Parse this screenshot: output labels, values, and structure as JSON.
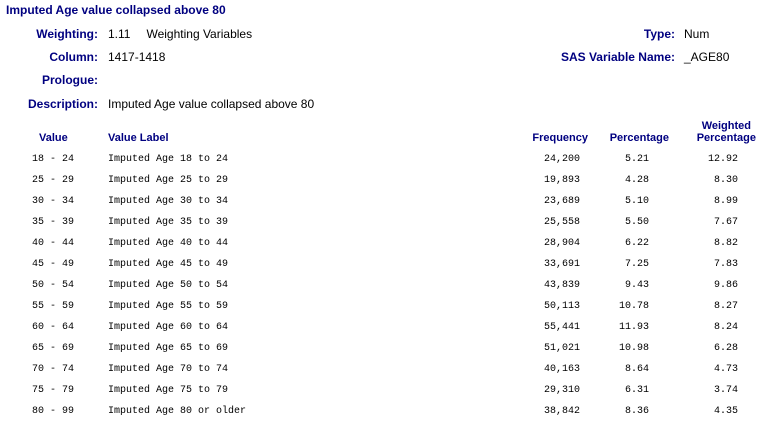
{
  "title": "Imputed Age value collapsed above 80",
  "meta": {
    "weighting_label": "Weighting:",
    "weighting_number": "1.11",
    "weighting_text": "Weighting Variables",
    "type_label": "Type:",
    "type_value": "Num",
    "column_label": "Column:",
    "column_value": "1417-1418",
    "sas_label": "SAS Variable Name:",
    "sas_value": "_AGE80",
    "prologue_label": "Prologue:",
    "description_label": "Description:",
    "description_value": "Imputed Age value collapsed above 80"
  },
  "table": {
    "headers": {
      "value": "Value",
      "value_label": "Value Label",
      "frequency": "Frequency",
      "percentage": "Percentage",
      "weighted_line1": "Weighted",
      "weighted_line2": "Percentage"
    },
    "rows": [
      {
        "value": "18 - 24",
        "label": "Imputed Age 18 to 24",
        "frequency": "24,200",
        "percentage": "5.21",
        "weighted": "12.92"
      },
      {
        "value": "25 - 29",
        "label": "Imputed Age 25 to 29",
        "frequency": "19,893",
        "percentage": "4.28",
        "weighted": "8.30"
      },
      {
        "value": "30 - 34",
        "label": "Imputed Age 30 to 34",
        "frequency": "23,689",
        "percentage": "5.10",
        "weighted": "8.99"
      },
      {
        "value": "35 - 39",
        "label": "Imputed Age 35 to 39",
        "frequency": "25,558",
        "percentage": "5.50",
        "weighted": "7.67"
      },
      {
        "value": "40 - 44",
        "label": "Imputed Age 40 to 44",
        "frequency": "28,904",
        "percentage": "6.22",
        "weighted": "8.82"
      },
      {
        "value": "45 - 49",
        "label": "Imputed Age 45 to 49",
        "frequency": "33,691",
        "percentage": "7.25",
        "weighted": "7.83"
      },
      {
        "value": "50 - 54",
        "label": "Imputed Age 50 to 54",
        "frequency": "43,839",
        "percentage": "9.43",
        "weighted": "9.86"
      },
      {
        "value": "55 - 59",
        "label": "Imputed Age 55 to 59",
        "frequency": "50,113",
        "percentage": "10.78",
        "weighted": "8.27"
      },
      {
        "value": "60 - 64",
        "label": "Imputed Age 60 to 64",
        "frequency": "55,441",
        "percentage": "11.93",
        "weighted": "8.24"
      },
      {
        "value": "65 - 69",
        "label": "Imputed Age 65 to 69",
        "frequency": "51,021",
        "percentage": "10.98",
        "weighted": "6.28"
      },
      {
        "value": "70 - 74",
        "label": "Imputed Age 70 to 74",
        "frequency": "40,163",
        "percentage": "8.64",
        "weighted": "4.73"
      },
      {
        "value": "75 - 79",
        "label": "Imputed Age 75 to 79",
        "frequency": "29,310",
        "percentage": "6.31",
        "weighted": "3.74"
      },
      {
        "value": "80 - 99",
        "label": "Imputed Age 80 or older",
        "frequency": "38,842",
        "percentage": "8.36",
        "weighted": "4.35"
      }
    ]
  }
}
